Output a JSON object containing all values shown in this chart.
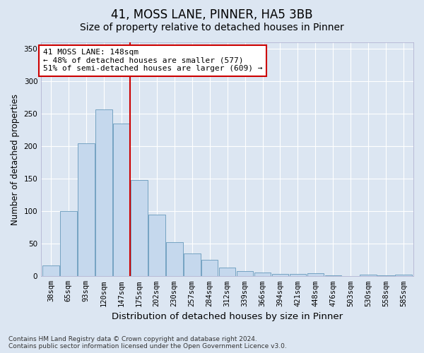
{
  "title1": "41, MOSS LANE, PINNER, HA5 3BB",
  "title2": "Size of property relative to detached houses in Pinner",
  "xlabel": "Distribution of detached houses by size in Pinner",
  "ylabel": "Number of detached properties",
  "categories": [
    "38sqm",
    "65sqm",
    "93sqm",
    "120sqm",
    "147sqm",
    "175sqm",
    "202sqm",
    "230sqm",
    "257sqm",
    "284sqm",
    "312sqm",
    "339sqm",
    "366sqm",
    "394sqm",
    "421sqm",
    "448sqm",
    "476sqm",
    "503sqm",
    "530sqm",
    "558sqm",
    "585sqm"
  ],
  "values": [
    17,
    100,
    205,
    257,
    235,
    148,
    95,
    52,
    35,
    25,
    13,
    8,
    6,
    4,
    4,
    5,
    1,
    0,
    2,
    1,
    2
  ],
  "bar_color": "#c5d8ed",
  "bar_edge_color": "#6699bb",
  "vline_x": 4.5,
  "vline_color": "#cc0000",
  "annotation_text": "41 MOSS LANE: 148sqm\n← 48% of detached houses are smaller (577)\n51% of semi-detached houses are larger (609) →",
  "annotation_box_color": "#ffffff",
  "annotation_box_edge": "#cc0000",
  "ylim": [
    0,
    360
  ],
  "yticks": [
    0,
    50,
    100,
    150,
    200,
    250,
    300,
    350
  ],
  "fig_bg_color": "#dce6f2",
  "plot_bg": "#dce6f2",
  "grid_color": "#ffffff",
  "footer": "Contains HM Land Registry data © Crown copyright and database right 2024.\nContains public sector information licensed under the Open Government Licence v3.0.",
  "title1_fontsize": 12,
  "title2_fontsize": 10,
  "xlabel_fontsize": 9.5,
  "ylabel_fontsize": 8.5,
  "tick_fontsize": 7.5,
  "annotation_fontsize": 8,
  "footer_fontsize": 6.5
}
